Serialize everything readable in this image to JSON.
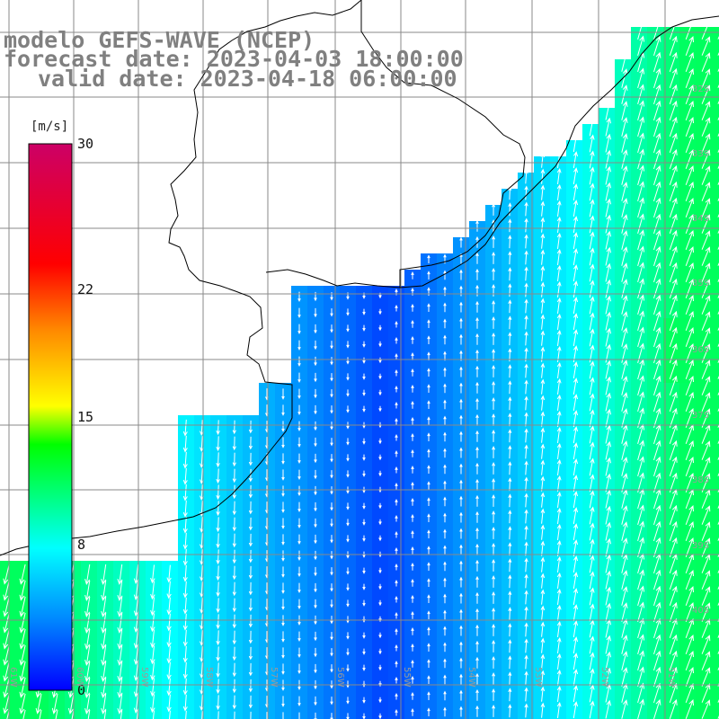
{
  "title": {
    "line1": "modelo GEFS-WAVE (NCEP)",
    "line2": "forecast date: 2023-04-03 18:00:00",
    "line3": "valid date: 2023-04-18 06:00:00"
  },
  "colorbar": {
    "units": "[m/s]",
    "ticks": [
      {
        "label": "30",
        "value": 30
      },
      {
        "label": "22",
        "value": 22
      },
      {
        "label": "15",
        "value": 15
      },
      {
        "label": "8",
        "value": 8
      },
      {
        "label": "0",
        "value": 0
      }
    ],
    "colors": [
      "#0000ff",
      "#0088ff",
      "#00ffff",
      "#00ff00",
      "#ffff00",
      "#ff8800",
      "#ff0000",
      "#cc0066"
    ]
  },
  "map": {
    "land_color": "#ffffff",
    "coast_color": "#000000",
    "grid_color": "#808080",
    "lat_labels": [
      "32S",
      "33S",
      "34S",
      "35S",
      "36S",
      "37S",
      "38S",
      "39S",
      "40S"
    ],
    "lon_labels": [
      "61W",
      "60W",
      "59W",
      "58W",
      "57W",
      "56W",
      "55W",
      "54W",
      "53W",
      "52W",
      "51W"
    ]
  }
}
